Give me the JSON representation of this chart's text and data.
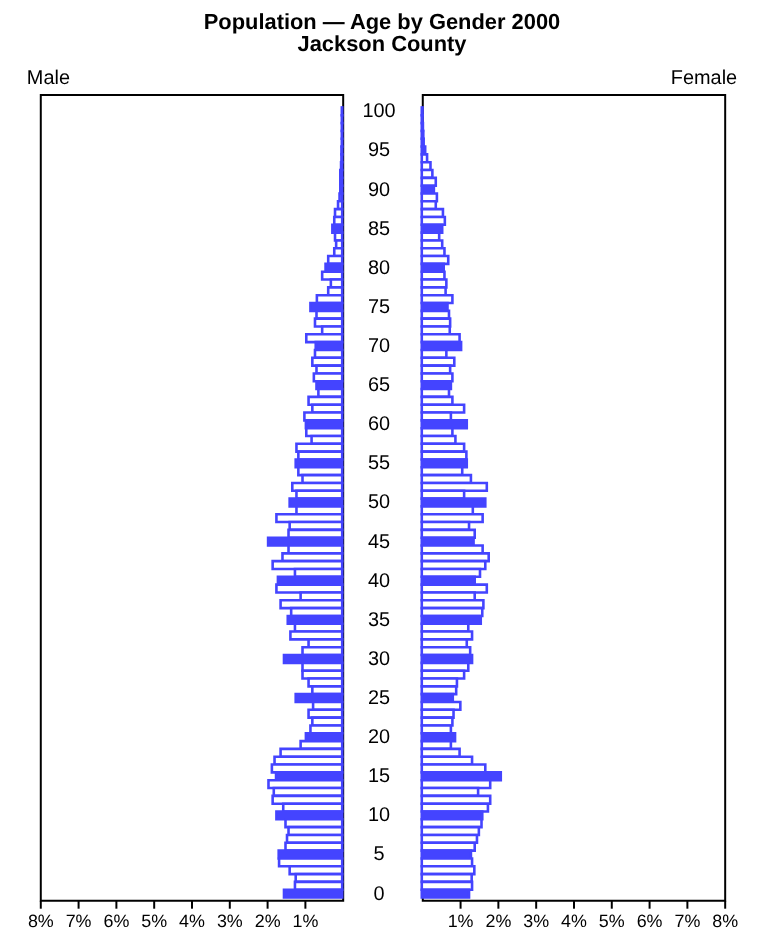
{
  "chart_data": [
    {
      "type": "bar",
      "orientation": "horizontal",
      "title": "Population — Age by Gender 2000",
      "subtitle": "Jackson County",
      "categories": [
        "100",
        null,
        null,
        null,
        null,
        "95",
        null,
        null,
        null,
        null,
        "90",
        null,
        null,
        null,
        null,
        "85",
        null,
        null,
        null,
        null,
        "80",
        null,
        null,
        null,
        null,
        "75",
        null,
        null,
        null,
        null,
        "70",
        null,
        null,
        null,
        null,
        "65",
        null,
        null,
        null,
        null,
        "60",
        null,
        null,
        null,
        null,
        "55",
        null,
        null,
        null,
        null,
        "50",
        null,
        null,
        null,
        null,
        "45",
        null,
        null,
        null,
        null,
        "40",
        null,
        null,
        null,
        null,
        "35",
        null,
        null,
        null,
        null,
        "30",
        null,
        null,
        null,
        null,
        "25",
        null,
        null,
        null,
        null,
        "20",
        null,
        null,
        null,
        null,
        "15",
        null,
        null,
        null,
        null,
        "10",
        null,
        null,
        null,
        null,
        "5",
        null,
        null,
        null,
        null,
        "0"
      ],
      "colors": [
        "#4444ff",
        "#ffffff",
        "#ffffff",
        "#ffffff",
        "#ffffff",
        "#4444ff",
        "#ffffff",
        "#ffffff",
        "#ffffff",
        "#ffffff",
        "#4444ff",
        "#ffffff",
        "#ffffff",
        "#ffffff",
        "#ffffff",
        "#4444ff",
        "#ffffff",
        "#ffffff",
        "#ffffff",
        "#ffffff",
        "#4444ff",
        "#ffffff",
        "#ffffff",
        "#ffffff",
        "#ffffff",
        "#4444ff",
        "#ffffff",
        "#ffffff",
        "#ffffff",
        "#ffffff",
        "#4444ff",
        "#ffffff",
        "#ffffff",
        "#ffffff",
        "#ffffff",
        "#4444ff",
        "#ffffff",
        "#ffffff",
        "#ffffff",
        "#ffffff",
        "#4444ff",
        "#ffffff",
        "#ffffff",
        "#ffffff",
        "#ffffff",
        "#4444ff",
        "#ffffff",
        "#ffffff",
        "#ffffff",
        "#ffffff",
        "#4444ff",
        "#ffffff",
        "#ffffff",
        "#ffffff",
        "#ffffff",
        "#4444ff",
        "#ffffff",
        "#ffffff",
        "#ffffff",
        "#ffffff",
        "#4444ff",
        "#ffffff",
        "#ffffff",
        "#ffffff",
        "#ffffff",
        "#4444ff",
        "#ffffff",
        "#ffffff",
        "#ffffff",
        "#ffffff",
        "#4444ff",
        "#ffffff",
        "#ffffff",
        "#ffffff",
        "#ffffff",
        "#4444ff",
        "#ffffff",
        "#ffffff",
        "#ffffff",
        "#ffffff",
        "#4444ff",
        "#ffffff",
        "#ffffff",
        "#ffffff",
        "#ffffff",
        "#4444ff",
        "#ffffff",
        "#ffffff",
        "#ffffff",
        "#ffffff",
        "#4444ff",
        "#ffffff",
        "#ffffff",
        "#ffffff",
        "#ffffff",
        "#4444ff",
        "#ffffff",
        "#ffffff",
        "#ffffff",
        "#ffffff",
        "#4444ff"
      ],
      "series": [
        {
          "name": "Male",
          "color": "#4444ff",
          "values": [
            0.01,
            0.01,
            0.01,
            0.01,
            0.01,
            0.02,
            0.02,
            0.03,
            0.05,
            0.05,
            0.05,
            0.07,
            0.11,
            0.19,
            0.21,
            0.26,
            0.19,
            0.16,
            0.21,
            0.37,
            0.44,
            0.53,
            0.3,
            0.37,
            0.67,
            0.84,
            0.68,
            0.72,
            0.53,
            0.95,
            0.7,
            0.72,
            0.79,
            0.68,
            0.75,
            0.68,
            0.63,
            0.89,
            0.79,
            1.0,
            0.96,
            0.95,
            0.81,
            1.21,
            1.16,
            1.23,
            1.16,
            1.05,
            1.32,
            1.21,
            1.39,
            1.21,
            1.74,
            1.39,
            1.42,
            1.96,
            1.42,
            1.58,
            1.84,
            1.25,
            1.7,
            1.74,
            1.1,
            1.63,
            1.35,
            1.44,
            1.25,
            1.37,
            0.89,
            1.05,
            1.54,
            1.05,
            1.05,
            0.89,
            0.79,
            1.23,
            0.77,
            0.89,
            0.79,
            0.84,
            0.96,
            1.1,
            1.63,
            1.79,
            1.86,
            1.75,
            1.95,
            1.81,
            1.84,
            1.56,
            1.74,
            1.5,
            1.42,
            1.46,
            1.5,
            1.68,
            1.67,
            1.39,
            1.23,
            1.25,
            1.54
          ]
        }
      ],
      "xlim": [
        8,
        0
      ],
      "xticks": [
        {
          "value": 8,
          "label": "8%"
        },
        {
          "value": 7,
          "label": "7%"
        },
        {
          "value": 6,
          "label": "6%"
        },
        {
          "value": 5,
          "label": "5%"
        },
        {
          "value": 4,
          "label": "4%"
        },
        {
          "value": 3,
          "label": "3%"
        },
        {
          "value": 2,
          "label": "2%"
        },
        {
          "value": 1,
          "label": "1%"
        }
      ]
    },
    {
      "type": "bar",
      "orientation": "horizontal",
      "tick_labels": "x",
      "categories": [
        "100",
        null,
        null,
        null,
        null,
        "95",
        null,
        null,
        null,
        null,
        "90",
        null,
        null,
        null,
        null,
        "85",
        null,
        null,
        null,
        null,
        "80",
        null,
        null,
        null,
        null,
        "75",
        null,
        null,
        null,
        null,
        "70",
        null,
        null,
        null,
        null,
        "65",
        null,
        null,
        null,
        null,
        "60",
        null,
        null,
        null,
        null,
        "55",
        null,
        null,
        null,
        null,
        "50",
        null,
        null,
        null,
        null,
        "45",
        null,
        null,
        null,
        null,
        "40",
        null,
        null,
        null,
        null,
        "35",
        null,
        null,
        null,
        null,
        "30",
        null,
        null,
        null,
        null,
        "25",
        null,
        null,
        null,
        null,
        "20",
        null,
        null,
        null,
        null,
        "15",
        null,
        null,
        null,
        null,
        "10",
        null,
        null,
        null,
        null,
        "5",
        null,
        null,
        null,
        null,
        "0"
      ],
      "colors": [
        "#4444ff",
        "#ffffff",
        "#ffffff",
        "#ffffff",
        "#ffffff",
        "#4444ff",
        "#ffffff",
        "#ffffff",
        "#ffffff",
        "#ffffff",
        "#4444ff",
        "#ffffff",
        "#ffffff",
        "#ffffff",
        "#ffffff",
        "#4444ff",
        "#ffffff",
        "#ffffff",
        "#ffffff",
        "#ffffff",
        "#4444ff",
        "#ffffff",
        "#ffffff",
        "#ffffff",
        "#ffffff",
        "#4444ff",
        "#ffffff",
        "#ffffff",
        "#ffffff",
        "#ffffff",
        "#4444ff",
        "#ffffff",
        "#ffffff",
        "#ffffff",
        "#ffffff",
        "#4444ff",
        "#ffffff",
        "#ffffff",
        "#ffffff",
        "#ffffff",
        "#4444ff",
        "#ffffff",
        "#ffffff",
        "#ffffff",
        "#ffffff",
        "#4444ff",
        "#ffffff",
        "#ffffff",
        "#ffffff",
        "#ffffff",
        "#4444ff",
        "#ffffff",
        "#ffffff",
        "#ffffff",
        "#ffffff",
        "#4444ff",
        "#ffffff",
        "#ffffff",
        "#ffffff",
        "#ffffff",
        "#4444ff",
        "#ffffff",
        "#ffffff",
        "#ffffff",
        "#ffffff",
        "#4444ff",
        "#ffffff",
        "#ffffff",
        "#ffffff",
        "#ffffff",
        "#4444ff",
        "#ffffff",
        "#ffffff",
        "#ffffff",
        "#ffffff",
        "#4444ff",
        "#ffffff",
        "#ffffff",
        "#ffffff",
        "#ffffff",
        "#4444ff",
        "#ffffff",
        "#ffffff",
        "#ffffff",
        "#ffffff",
        "#4444ff",
        "#ffffff",
        "#ffffff",
        "#ffffff",
        "#ffffff",
        "#4444ff",
        "#ffffff",
        "#ffffff",
        "#ffffff",
        "#ffffff",
        "#4444ff",
        "#ffffff",
        "#ffffff",
        "#ffffff",
        "#ffffff",
        "#4444ff"
      ],
      "series": [
        {
          "name": "Female",
          "color": "#4444ff",
          "values": [
            0.02,
            0.02,
            0.03,
            0.04,
            0.05,
            0.09,
            0.14,
            0.23,
            0.28,
            0.37,
            0.32,
            0.4,
            0.37,
            0.56,
            0.61,
            0.54,
            0.46,
            0.54,
            0.6,
            0.7,
            0.58,
            0.6,
            0.65,
            0.63,
            0.81,
            0.68,
            0.72,
            0.75,
            0.74,
            1.0,
            1.04,
            0.65,
            0.86,
            0.75,
            0.81,
            0.77,
            0.72,
            0.81,
            1.12,
            0.77,
            1.19,
            0.81,
            0.89,
            1.12,
            1.18,
            1.19,
            1.07,
            1.3,
            1.72,
            1.12,
            1.68,
            1.35,
            1.61,
            1.25,
            1.4,
            1.37,
            1.61,
            1.77,
            1.68,
            1.54,
            1.4,
            1.72,
            1.4,
            1.63,
            1.6,
            1.56,
            1.23,
            1.33,
            1.19,
            1.28,
            1.33,
            1.23,
            1.12,
            0.93,
            0.91,
            0.82,
            1.02,
            0.84,
            0.81,
            0.77,
            0.88,
            0.77,
            1.0,
            1.33,
            1.68,
            2.09,
            1.81,
            1.49,
            1.81,
            1.75,
            1.6,
            1.58,
            1.51,
            1.46,
            1.4,
            1.3,
            1.33,
            1.39,
            1.32,
            1.33,
            1.25
          ]
        }
      ],
      "xlim": [
        0,
        8
      ],
      "xticks": [
        {
          "value": 1,
          "label": "1%"
        },
        {
          "value": 2,
          "label": "2%"
        },
        {
          "value": 3,
          "label": "3%"
        },
        {
          "value": 4,
          "label": "4%"
        },
        {
          "value": 5,
          "label": "5%"
        },
        {
          "value": 6,
          "label": "6%"
        },
        {
          "value": 7,
          "label": "7%"
        },
        {
          "value": 8,
          "label": "8%"
        }
      ]
    }
  ]
}
